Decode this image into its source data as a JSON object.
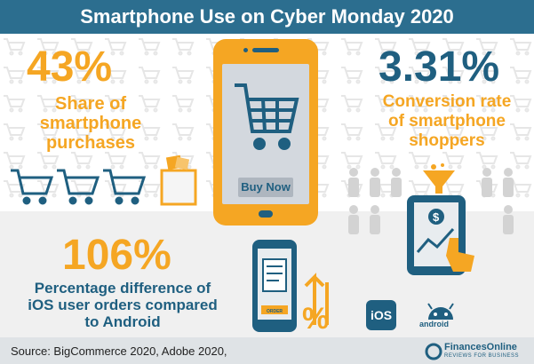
{
  "header": {
    "title": "Smartphone Use on Cyber Monday 2020"
  },
  "stat_share": {
    "value": "43%",
    "label_lines": [
      "Share of",
      "smartphone",
      "purchases"
    ]
  },
  "stat_conversion": {
    "value": "3.31%",
    "label_lines": [
      "Conversion rate",
      "of smartphone",
      "shoppers"
    ]
  },
  "stat_ios": {
    "value": "106%",
    "label_lines": [
      "Percentage difference of",
      "iOS user orders compared",
      "to Android"
    ]
  },
  "phone": {
    "button_label": "Buy Now"
  },
  "order_card": {
    "label": "ORDER"
  },
  "ios_badge": {
    "label": "iOS"
  },
  "android_badge": {
    "label": "android"
  },
  "footer": {
    "source": "Source: BigCommerce 2020, Adobe 2020,",
    "brand": "FinancesOnline",
    "brand_sub": "REVIEWS FOR BUSINESS"
  },
  "colors": {
    "primary_blue": "#1f5f80",
    "accent_orange": "#f5a623",
    "header_blue": "#2c6e8f"
  },
  "icons": [
    "shopping-cart-icon",
    "shopping-bag-icon",
    "funnel-icon",
    "dollar-icon",
    "pointer-hand-icon",
    "clipboard-icon",
    "arrow-up-icon",
    "percent-icon",
    "apple-ios-icon",
    "android-icon",
    "person-icon"
  ]
}
